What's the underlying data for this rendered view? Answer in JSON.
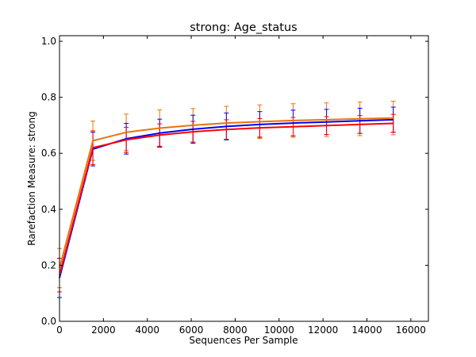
{
  "chart_data": {
    "type": "line",
    "title": "strong: Age_status",
    "xlabel": "Sequences Per Sample",
    "ylabel": "Rarefaction Measure: strong",
    "xlim": [
      0,
      16800
    ],
    "ylim": [
      0,
      1.02
    ],
    "x_ticks": [
      0,
      2000,
      4000,
      6000,
      8000,
      10000,
      12000,
      14000,
      16000
    ],
    "x_tick_labels": [
      "0",
      "2000",
      "4000",
      "6000",
      "8000",
      "10000",
      "12000",
      "14000",
      "16000"
    ],
    "y_ticks": [
      0.0,
      0.2,
      0.4,
      0.6,
      0.8,
      1.0
    ],
    "y_tick_labels": [
      "0.0",
      "0.2",
      "0.4",
      "0.6",
      "0.8",
      "1.0"
    ],
    "grid": false,
    "x": [
      0,
      1520,
      3040,
      4560,
      6080,
      7600,
      9120,
      10640,
      12160,
      13680,
      15200
    ],
    "series": [
      {
        "color": "#e8740c",
        "values": [
          0.19,
          0.645,
          0.675,
          0.69,
          0.7,
          0.708,
          0.713,
          0.717,
          0.72,
          0.723,
          0.726
        ],
        "errors": [
          0.07,
          0.07,
          0.065,
          0.065,
          0.06,
          0.06,
          0.06,
          0.06,
          0.06,
          0.06,
          0.06
        ]
      },
      {
        "color": "#0000ff",
        "values": [
          0.155,
          0.615,
          0.652,
          0.672,
          0.686,
          0.696,
          0.703,
          0.708,
          0.712,
          0.716,
          0.72
        ],
        "errors": [
          0.07,
          0.06,
          0.055,
          0.05,
          0.05,
          0.048,
          0.046,
          0.046,
          0.045,
          0.045,
          0.045
        ]
      },
      {
        "color": "#ff0000",
        "values": [
          0.165,
          0.62,
          0.648,
          0.665,
          0.677,
          0.685,
          0.691,
          0.695,
          0.699,
          0.703,
          0.707
        ],
        "errors": [
          0.06,
          0.06,
          0.045,
          0.04,
          0.037,
          0.035,
          0.033,
          0.033,
          0.032,
          0.032,
          0.032
        ]
      }
    ]
  }
}
